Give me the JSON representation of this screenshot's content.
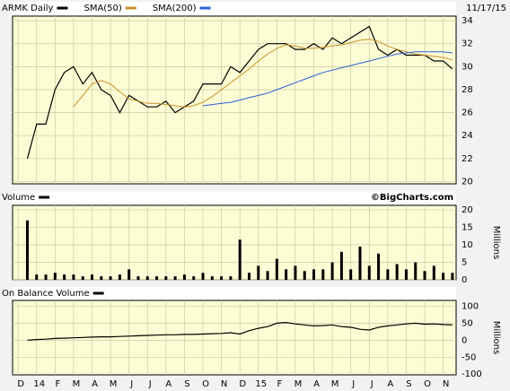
{
  "chart_data": [
    {
      "type": "line",
      "subtitle": "11/17/15",
      "x": [
        0.5,
        1,
        1.5,
        2,
        2.5,
        3,
        3.5,
        4,
        4.5,
        5,
        5.5,
        6,
        6.5,
        7,
        7.5,
        8,
        8.5,
        9,
        9.5,
        10,
        10.5,
        11,
        11.5,
        12,
        12.5,
        13,
        13.5,
        14,
        14.5,
        15,
        15.5,
        16,
        16.5,
        17,
        17.5,
        18,
        18.5,
        19,
        19.5,
        20,
        20.5,
        21,
        21.5,
        22,
        22.5,
        23,
        23.5
      ],
      "series": [
        {
          "name": "ARMK Daily",
          "color": "#000000",
          "values": [
            22,
            25,
            25,
            28,
            29.5,
            30,
            28.5,
            29.5,
            28,
            27.5,
            26,
            27.5,
            27,
            26.5,
            26.5,
            27,
            26,
            26.5,
            27,
            28.5,
            28.5,
            28.5,
            30,
            29.5,
            30.5,
            31.5,
            32,
            32,
            32,
            31.5,
            31.5,
            32,
            31.5,
            32.5,
            32,
            32.5,
            33,
            33.5,
            31.5,
            31,
            31.5,
            31,
            31,
            31,
            30.5,
            30.5,
            29.8
          ]
        },
        {
          "name": "SMA(50)",
          "color": "#c8902a",
          "values": [
            null,
            null,
            null,
            null,
            null,
            26.5,
            27.5,
            28.5,
            28.8,
            28.5,
            27.8,
            27.2,
            27,
            26.8,
            26.8,
            26.7,
            26.6,
            26.5,
            26.6,
            26.9,
            27.4,
            28,
            28.6,
            29.2,
            29.8,
            30.5,
            31.1,
            31.6,
            31.9,
            31.8,
            31.6,
            31.6,
            31.7,
            31.8,
            31.9,
            32.1,
            32.3,
            32.4,
            32.2,
            31.8,
            31.5,
            31.3,
            31.1,
            31,
            30.9,
            30.8,
            30.6
          ]
        },
        {
          "name": "SMA(200)",
          "color": "#2c5fd8",
          "values": [
            null,
            null,
            null,
            null,
            null,
            null,
            null,
            null,
            null,
            null,
            null,
            null,
            null,
            null,
            null,
            null,
            null,
            null,
            null,
            26.6,
            26.7,
            26.8,
            26.9,
            27.1,
            27.3,
            27.5,
            27.7,
            28,
            28.3,
            28.6,
            28.9,
            29.2,
            29.5,
            29.7,
            29.9,
            30.1,
            30.3,
            30.5,
            30.7,
            30.9,
            31.1,
            31.2,
            31.3,
            31.3,
            31.3,
            31.3,
            31.2
          ]
        }
      ],
      "xlim": [
        -0.3,
        23.7
      ],
      "xticks": [
        {
          "value": 0,
          "label": "D"
        },
        {
          "value": 1,
          "label": "14"
        },
        {
          "value": 2,
          "label": "F"
        },
        {
          "value": 3,
          "label": "M"
        },
        {
          "value": 4,
          "label": "A"
        },
        {
          "value": 5,
          "label": "M"
        },
        {
          "value": 6,
          "label": "J"
        },
        {
          "value": 7,
          "label": "J"
        },
        {
          "value": 8,
          "label": "A"
        },
        {
          "value": 9,
          "label": "S"
        },
        {
          "value": 10,
          "label": "O"
        },
        {
          "value": 11,
          "label": "N"
        },
        {
          "value": 12,
          "label": "D"
        },
        {
          "value": 13,
          "label": "15"
        },
        {
          "value": 14,
          "label": "F"
        },
        {
          "value": 15,
          "label": "M"
        },
        {
          "value": 16,
          "label": "A"
        },
        {
          "value": 17,
          "label": "M"
        },
        {
          "value": 18,
          "label": "J"
        },
        {
          "value": 19,
          "label": "J"
        },
        {
          "value": 20,
          "label": "A"
        },
        {
          "value": 21,
          "label": "S"
        },
        {
          "value": 22,
          "label": "O"
        },
        {
          "value": 23,
          "label": "N"
        }
      ],
      "ylim": [
        19.8,
        34.4
      ],
      "yticks": [
        20,
        22,
        24,
        26,
        28,
        30,
        32,
        34
      ],
      "grid": true
    },
    {
      "type": "bar",
      "annotation": "©BigCharts.com",
      "y_label": "Millions",
      "x": [
        0.5,
        1,
        1.5,
        2,
        2.5,
        3,
        3.5,
        4,
        4.5,
        5,
        5.5,
        6,
        6.5,
        7,
        7.5,
        8,
        8.5,
        9,
        9.5,
        10,
        10.5,
        11,
        11.5,
        12,
        12.5,
        13,
        13.5,
        14,
        14.5,
        15,
        15.5,
        16,
        16.5,
        17,
        17.5,
        18,
        18.5,
        19,
        19.5,
        20,
        20.5,
        21,
        21.5,
        22,
        22.5,
        23,
        23.5
      ],
      "series": [
        {
          "name": "Volume",
          "color": "#000000",
          "values": [
            17,
            1.5,
            1.5,
            2,
            1.5,
            1.5,
            1,
            1.5,
            1,
            1,
            1.5,
            3,
            1,
            1,
            1,
            1,
            1,
            1.5,
            1,
            2,
            1,
            1,
            1,
            11.5,
            2,
            4,
            2.5,
            6,
            3,
            4,
            2.5,
            3,
            3,
            5,
            8,
            3,
            9.5,
            4,
            7.5,
            3,
            4.5,
            3,
            5,
            2.5,
            4,
            2,
            2
          ]
        }
      ],
      "xlim": [
        -0.3,
        23.7
      ],
      "xticks": [
        {
          "value": 0,
          "label": "D"
        },
        {
          "value": 1,
          "label": "14"
        },
        {
          "value": 2,
          "label": "F"
        },
        {
          "value": 3,
          "label": "M"
        },
        {
          "value": 4,
          "label": "A"
        },
        {
          "value": 5,
          "label": "M"
        },
        {
          "value": 6,
          "label": "J"
        },
        {
          "value": 7,
          "label": "J"
        },
        {
          "value": 8,
          "label": "A"
        },
        {
          "value": 9,
          "label": "S"
        },
        {
          "value": 10,
          "label": "O"
        },
        {
          "value": 11,
          "label": "N"
        },
        {
          "value": 12,
          "label": "D"
        },
        {
          "value": 13,
          "label": "15"
        },
        {
          "value": 14,
          "label": "F"
        },
        {
          "value": 15,
          "label": "M"
        },
        {
          "value": 16,
          "label": "A"
        },
        {
          "value": 17,
          "label": "M"
        },
        {
          "value": 18,
          "label": "J"
        },
        {
          "value": 19,
          "label": "J"
        },
        {
          "value": 20,
          "label": "A"
        },
        {
          "value": 21,
          "label": "S"
        },
        {
          "value": 22,
          "label": "O"
        },
        {
          "value": 23,
          "label": "N"
        }
      ],
      "ylim": [
        0,
        21.3
      ],
      "yticks": [
        0,
        5,
        10,
        15,
        20
      ],
      "grid": true
    },
    {
      "type": "line",
      "y_label": "Millions",
      "x": [
        0.5,
        1,
        1.5,
        2,
        2.5,
        3,
        3.5,
        4,
        4.5,
        5,
        5.5,
        6,
        6.5,
        7,
        7.5,
        8,
        8.5,
        9,
        9.5,
        10,
        10.5,
        11,
        11.5,
        12,
        12.5,
        13,
        13.5,
        14,
        14.5,
        15,
        15.5,
        16,
        16.5,
        17,
        17.5,
        18,
        18.5,
        19,
        19.5,
        20,
        20.5,
        21,
        21.5,
        22,
        22.5,
        23,
        23.5
      ],
      "series": [
        {
          "name": "On Balance Volume",
          "color": "#000000",
          "values": [
            0,
            2,
            3,
            5,
            6,
            7,
            8,
            9,
            10,
            10,
            11,
            12,
            13,
            14,
            15,
            16,
            16,
            17,
            17,
            18,
            19,
            20,
            22,
            18,
            28,
            35,
            40,
            50,
            52,
            48,
            45,
            42,
            43,
            45,
            40,
            38,
            32,
            30,
            38,
            42,
            45,
            48,
            50,
            47,
            48,
            46,
            45
          ]
        }
      ],
      "xlim": [
        -0.3,
        23.7
      ],
      "xticks": [
        {
          "value": 0,
          "label": "D"
        },
        {
          "value": 1,
          "label": "14"
        },
        {
          "value": 2,
          "label": "F"
        },
        {
          "value": 3,
          "label": "M"
        },
        {
          "value": 4,
          "label": "A"
        },
        {
          "value": 5,
          "label": "M"
        },
        {
          "value": 6,
          "label": "J"
        },
        {
          "value": 7,
          "label": "J"
        },
        {
          "value": 8,
          "label": "A"
        },
        {
          "value": 9,
          "label": "S"
        },
        {
          "value": 10,
          "label": "O"
        },
        {
          "value": 11,
          "label": "N"
        },
        {
          "value": 12,
          "label": "D"
        },
        {
          "value": 13,
          "label": "15"
        },
        {
          "value": 14,
          "label": "F"
        },
        {
          "value": 15,
          "label": "M"
        },
        {
          "value": 16,
          "label": "A"
        },
        {
          "value": 17,
          "label": "M"
        },
        {
          "value": 18,
          "label": "J"
        },
        {
          "value": 19,
          "label": "J"
        },
        {
          "value": 20,
          "label": "A"
        },
        {
          "value": 21,
          "label": "S"
        },
        {
          "value": 22,
          "label": "O"
        },
        {
          "value": 23,
          "label": "N"
        }
      ],
      "ylim": [
        -102,
        117
      ],
      "yticks": [
        100,
        50,
        0,
        -50,
        -100
      ],
      "grid": true
    }
  ]
}
